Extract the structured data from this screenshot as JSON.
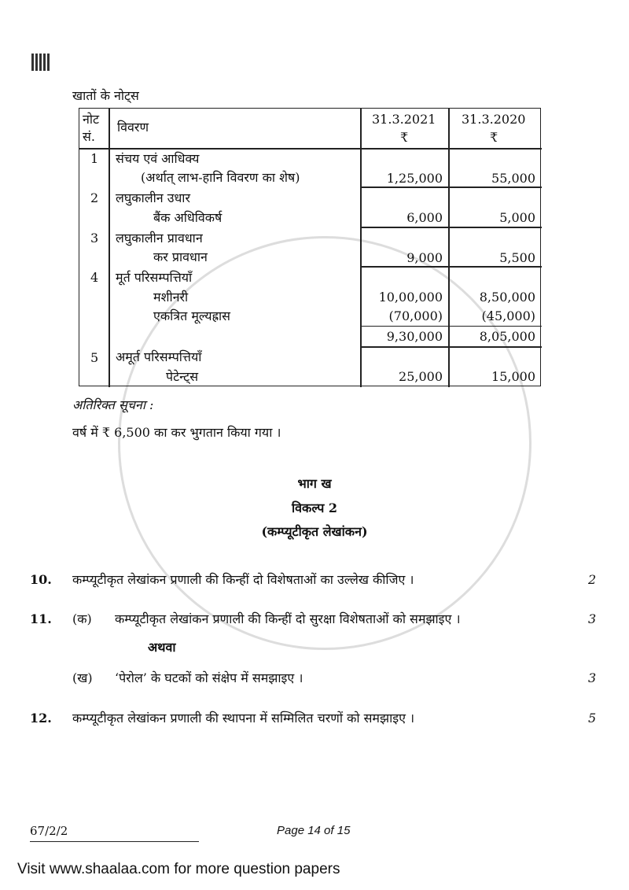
{
  "heading": "खातों के नोट्स",
  "table": {
    "headers": {
      "note": "नोट सं.",
      "desc": "विवरण",
      "col1": "31.3.2021",
      "col2": "31.3.2020",
      "currency": "₹"
    },
    "rows": [
      {
        "no": "1",
        "title": "संचय एवं आधिक्य",
        "item": "(अर्थात् लाभ-हानि विवरण का शेष)",
        "v1": "1,25,000",
        "v2": "55,000"
      },
      {
        "no": "2",
        "title": "लघुकालीन उधार",
        "item": "बैंक अधिविकर्ष",
        "v1": "6,000",
        "v2": "5,000"
      },
      {
        "no": "3",
        "title": "लघुकालीन प्रावधान",
        "item": "कर प्रावधान",
        "v1": "9,000",
        "v2": "5,500"
      },
      {
        "no": "4",
        "title": "मूर्त परिसम्पत्तियाँ",
        "item": "मशीनरी",
        "v1": "10,00,000",
        "v2": "8,50,000",
        "item2": "एकत्रित मूल्यह्रास",
        "v1b": "(70,000)",
        "v2b": "(45,000)",
        "t1": "9,30,000",
        "t2": "8,05,000"
      },
      {
        "no": "5",
        "title": "अमूर्त परिसम्पत्तियाँ",
        "item": "पेटेन्ट्स",
        "v1": "25,000",
        "v2": "15,000"
      }
    ]
  },
  "additional_label": "अतिरिक्त सूचना :",
  "additional_text": "वर्ष में ₹ 6,500 का कर भुगतान किया गया ।",
  "section": {
    "part": "भाग ख",
    "option": "विकल्प 2",
    "title": "(कम्प्यूटीकृत लेखांकन)"
  },
  "questions": [
    {
      "no": "10.",
      "text": "कम्प्यूटीकृत लेखांकन प्रणाली की किन्हीं दो विशेषताओं का उल्लेख कीजिए ।",
      "marks": "2"
    },
    {
      "no": "11.",
      "sub": "(क)",
      "text": "कम्प्यूटीकृत लेखांकन प्रणाली की किन्हीं दो सुरक्षा विशेषताओं को समझाइए ।",
      "marks": "3",
      "or": "अथवा",
      "sub2": "(ख)",
      "text2": "‘पेरोल’ के घटकों को संक्षेप में समझाइए ।",
      "marks2": "3"
    },
    {
      "no": "12.",
      "text": "कम्प्यूटीकृत लेखांकन प्रणाली की स्थापना में सम्मिलित चरणों को समझाइए ।",
      "marks": "5"
    }
  ],
  "footer": {
    "code": "67/2/2",
    "page": "Page 14 of 15",
    "banner": "Visit www.shaalaa.com for more question papers"
  },
  "watermark": "shaalaa.com"
}
